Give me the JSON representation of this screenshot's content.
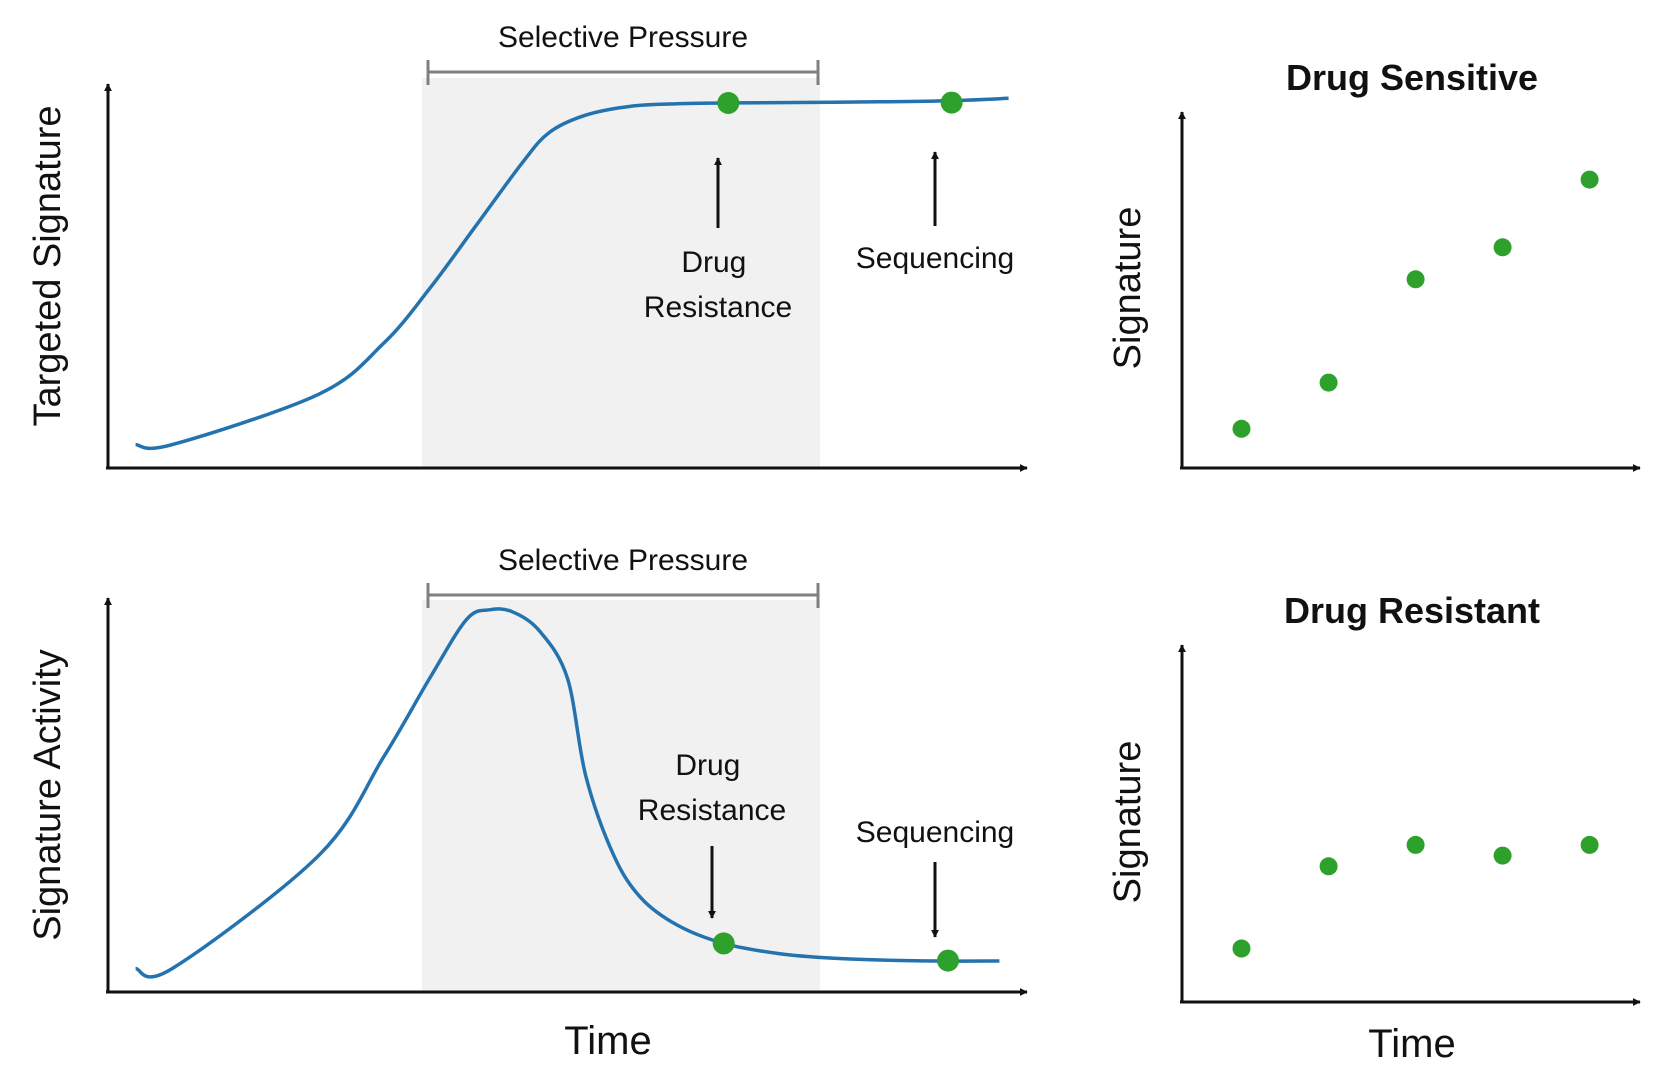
{
  "colors": {
    "curve": "#2472ae",
    "point": "#2ea02c",
    "shade": "#f1f1f1",
    "bracket": "#808080",
    "axis": "#111111"
  },
  "panels": {
    "top_left": {
      "ylabel": "Targeted Signature",
      "bracket_label": "Selective Pressure",
      "annotations": [
        {
          "text_lines": [
            "Drug",
            "Resistance"
          ]
        },
        {
          "text_lines": [
            "Sequencing"
          ]
        }
      ]
    },
    "bottom_left": {
      "ylabel": "Signature Activity",
      "bracket_label": "Selective Pressure",
      "xlabel": "Time",
      "annotations": [
        {
          "text_lines": [
            "Drug",
            "Resistance"
          ]
        },
        {
          "text_lines": [
            "Sequencing"
          ]
        }
      ]
    },
    "top_right": {
      "title": "Drug Sensitive",
      "ylabel": "Signature"
    },
    "bottom_right": {
      "title": "Drug Resistant",
      "ylabel": "Signature",
      "xlabel": "Time"
    }
  },
  "chart_data": [
    {
      "type": "line",
      "title": "",
      "xlabel": "",
      "ylabel": "Targeted Signature",
      "xlim": [
        0,
        100
      ],
      "ylim": [
        0,
        100
      ],
      "shaded_region": {
        "label": "Selective Pressure",
        "x": [
          35,
          78.5
        ]
      },
      "series": [
        {
          "x": [
            3,
            7,
            23,
            30,
            35,
            40,
            45,
            48,
            52,
            57,
            62,
            67,
            73,
            84,
            92,
            98
          ],
          "y": [
            6,
            6,
            19,
            32,
            46,
            62,
            78,
            86,
            90.5,
            92.8,
            93.4,
            93.6,
            93.7,
            93.9,
            94.2,
            94.8
          ]
        }
      ],
      "points": [
        {
          "x": 67.5,
          "y": 93.6,
          "label": "Drug Resistance"
        },
        {
          "x": 91.8,
          "y": 93.7,
          "label": "Sequencing"
        }
      ]
    },
    {
      "type": "line",
      "title": "",
      "xlabel": "Time",
      "ylabel": "Signature Activity",
      "xlim": [
        0,
        100
      ],
      "ylim": [
        0,
        100
      ],
      "shaded_region": {
        "label": "Selective Pressure",
        "x": [
          35,
          78.5
        ]
      },
      "series": [
        {
          "x": [
            3,
            7,
            23,
            30,
            35,
            39,
            41.5,
            44,
            47,
            50,
            52,
            55,
            58,
            62,
            67,
            73,
            79,
            85,
            91,
            97
          ],
          "y": [
            6,
            6,
            35,
            60,
            80,
            95,
            97.5,
            97,
            92,
            80,
            55,
            35,
            24,
            17,
            12.4,
            9.8,
            8.6,
            8.1,
            7.9,
            7.9
          ]
        }
      ],
      "points": [
        {
          "x": 67,
          "y": 12.4,
          "label": "Drug Resistance"
        },
        {
          "x": 91.4,
          "y": 8.0,
          "label": "Sequencing"
        }
      ]
    },
    {
      "type": "scatter",
      "title": "Drug Sensitive",
      "xlabel": "",
      "ylabel": "Signature",
      "xlim": [
        0,
        100
      ],
      "ylim": [
        0,
        100
      ],
      "x": [
        13,
        32,
        51,
        70,
        89
      ],
      "y": [
        11,
        24,
        53,
        62,
        81
      ]
    },
    {
      "type": "scatter",
      "title": "Drug Resistant",
      "xlabel": "Time",
      "ylabel": "Signature",
      "xlim": [
        0,
        100
      ],
      "ylim": [
        0,
        100
      ],
      "x": [
        13,
        32,
        51,
        70,
        89
      ],
      "y": [
        15,
        38,
        44,
        41,
        44
      ]
    }
  ]
}
